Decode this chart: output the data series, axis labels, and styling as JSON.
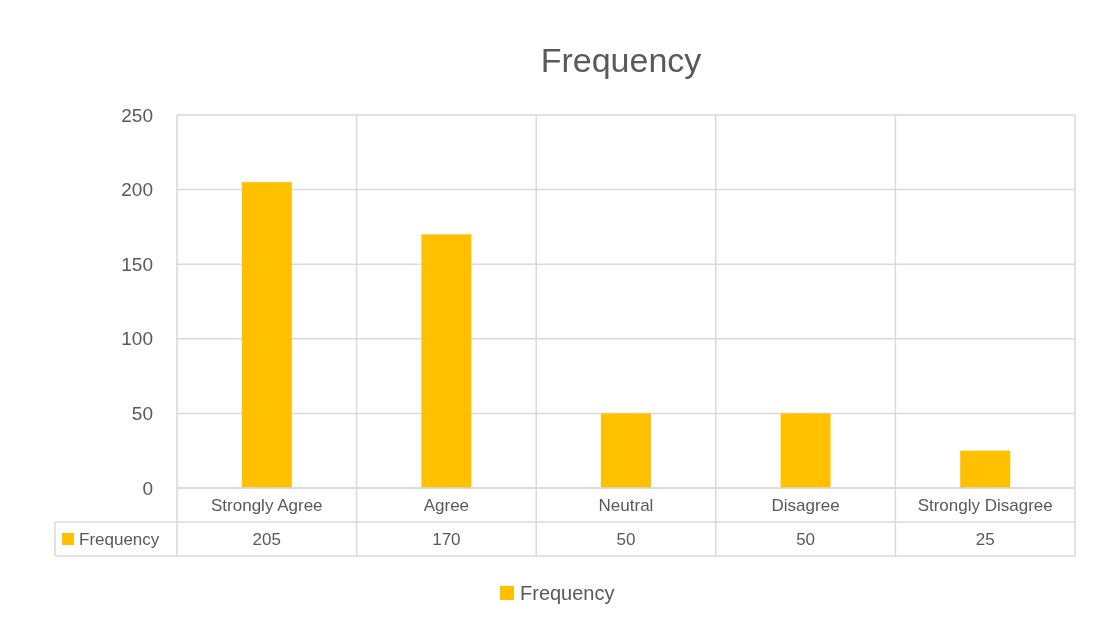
{
  "chart_data": {
    "type": "bar",
    "title": "Frequency",
    "categories": [
      "Strongly Agree",
      "Agree",
      "Neutral",
      "Disagree",
      "Strongly Disagree"
    ],
    "series": [
      {
        "name": "Frequency",
        "color": "#ffc000",
        "values": [
          205,
          170,
          50,
          50,
          25
        ]
      }
    ],
    "ylim": [
      0,
      250
    ],
    "yticks": [
      0,
      50,
      100,
      150,
      200,
      250
    ],
    "grid": "y",
    "data_labels": true,
    "legend": "bottom"
  }
}
